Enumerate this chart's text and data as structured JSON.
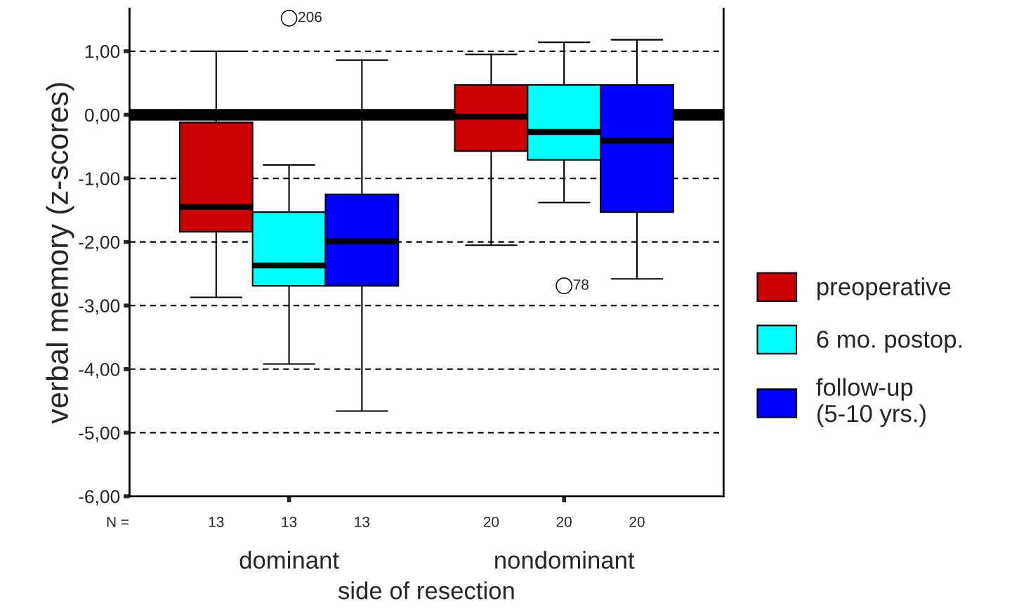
{
  "chart_data": {
    "type": "box",
    "xlabel": "side of resection",
    "ylabel": "verbal memory (z-scores)",
    "categories": [
      "dominant",
      "nondominant"
    ],
    "series": [
      {
        "name": "preoperative",
        "color": "#cc0000",
        "boxes": [
          {
            "low": -2.87,
            "q1": -1.84,
            "median": -1.45,
            "q3": -0.12,
            "high": 1.0
          },
          {
            "low": -2.05,
            "q1": -0.57,
            "median": -0.03,
            "q3": 0.47,
            "high": 0.95
          }
        ]
      },
      {
        "name": "6 mo. postop.",
        "color": "#00ffff",
        "boxes": [
          {
            "low": -3.92,
            "q1": -2.69,
            "median": -2.37,
            "q3": -1.53,
            "high": -0.79,
            "outliers": [
              1.52
            ]
          },
          {
            "low": -1.38,
            "q1": -0.71,
            "median": -0.27,
            "q3": 0.47,
            "high": 1.14,
            "outliers": [
              -2.69
            ]
          }
        ]
      },
      {
        "name": "follow-up\n(5-10 yrs.)",
        "color": "#0000ff",
        "boxes": [
          {
            "low": -4.66,
            "q1": -2.69,
            "median": -1.99,
            "q3": -1.25,
            "high": 0.86
          },
          {
            "low": -2.58,
            "q1": -1.53,
            "median": -0.41,
            "q3": 0.47,
            "high": 1.18
          }
        ]
      }
    ],
    "ylim": [
      -6,
      1.67
    ],
    "yticks": [
      {
        "value": 1,
        "label": "1,00"
      },
      {
        "value": 0,
        "label": "0,00"
      },
      {
        "value": -1,
        "label": "-1,00"
      },
      {
        "value": -2,
        "label": "-2,00"
      },
      {
        "value": -3,
        "label": "-3,00"
      },
      {
        "value": -4,
        "label": "-4,00"
      },
      {
        "value": -5,
        "label": "-5,00"
      },
      {
        "value": -6,
        "label": "-6,00"
      }
    ],
    "grid": "y",
    "line_style": "dashed",
    "legend": "right",
    "ref_lines": [
      {
        "axis": "y",
        "value": 0,
        "color": "#000000",
        "line_style": "solid"
      }
    ],
    "annotations": [
      "206",
      "78",
      "N =",
      "13",
      "13",
      "13",
      "20",
      "20",
      "20"
    ]
  }
}
